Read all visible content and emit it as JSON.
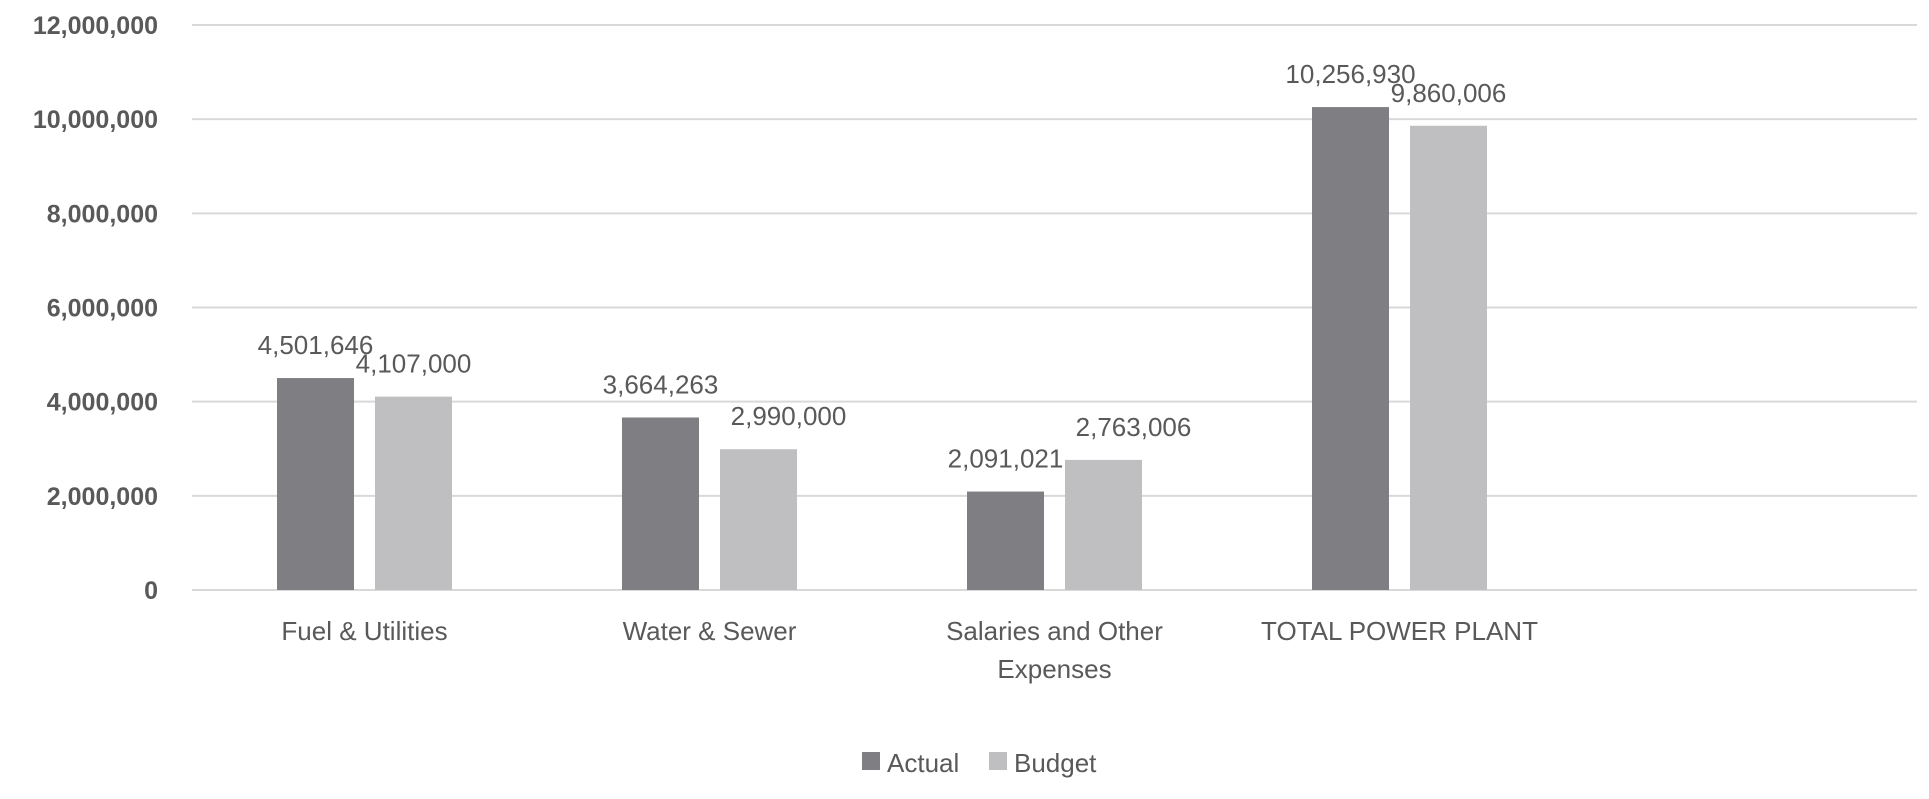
{
  "chart_data": {
    "type": "bar",
    "title": "",
    "xlabel": "",
    "ylabel": "",
    "ylim": [
      0,
      12000000
    ],
    "yticks": [
      0,
      2000000,
      4000000,
      6000000,
      8000000,
      10000000,
      12000000
    ],
    "ytick_labels": [
      "0",
      "2,000,000",
      "4,000,000",
      "6,000,000",
      "8,000,000",
      "10,000,000",
      "12,000,000"
    ],
    "grid": true,
    "legend_position": "bottom-center",
    "categories": [
      [
        "Fuel & Utilities"
      ],
      [
        "Water & Sewer"
      ],
      [
        "Salaries and Other",
        "Expenses"
      ],
      [
        "TOTAL POWER PLANT"
      ]
    ],
    "series": [
      {
        "name": "Actual",
        "color": "#7f7f83",
        "values": [
          4501646,
          3664263,
          2091021,
          10256930
        ],
        "labels": [
          "4,501,646",
          "3,664,263",
          "2,091,021",
          "10,256,930"
        ]
      },
      {
        "name": "Budget",
        "color": "#bfbfc1",
        "values": [
          4107000,
          2990000,
          2763006,
          9860006
        ],
        "labels": [
          "4,107,000",
          "2,990,000",
          "2,763,006",
          "9,860,006"
        ]
      }
    ]
  }
}
